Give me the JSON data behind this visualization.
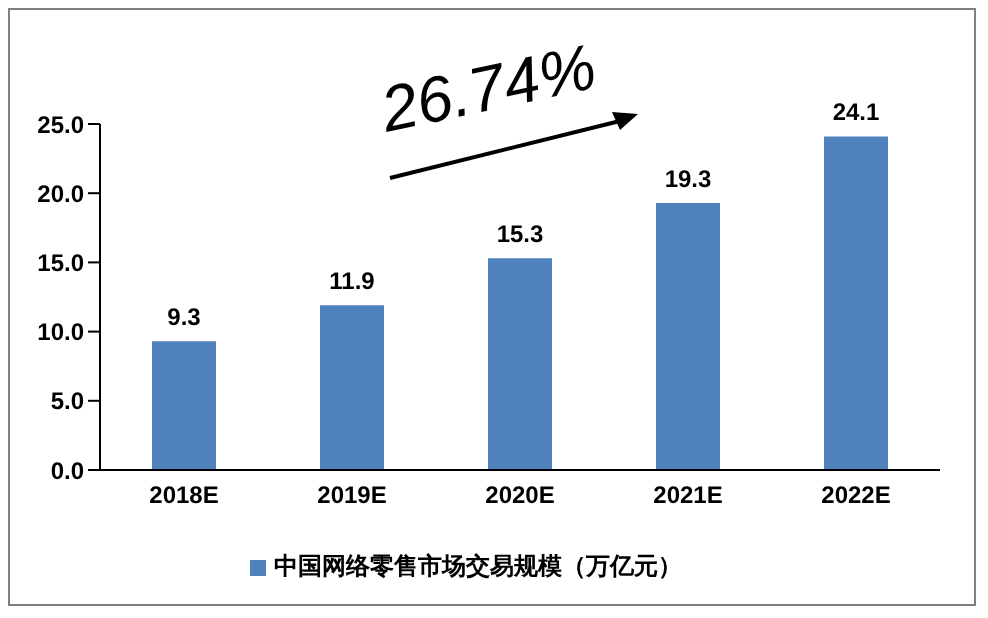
{
  "chart_data": {
    "type": "bar",
    "categories": [
      "2018E",
      "2019E",
      "2020E",
      "2021E",
      "2022E"
    ],
    "series": [
      {
        "name": "中国网络零售市场交易规模（万亿元）",
        "color": "#4f81bd",
        "values": [
          9.3,
          11.9,
          15.3,
          19.3,
          24.1
        ]
      }
    ],
    "ylim": [
      0,
      25
    ],
    "yticks": [
      {
        "value": 0,
        "label": "0.0"
      },
      {
        "value": 5,
        "label": "5.0"
      },
      {
        "value": 10,
        "label": "10.0"
      },
      {
        "value": 15,
        "label": "15.0"
      },
      {
        "value": 20,
        "label": "20.0"
      },
      {
        "value": 25,
        "label": "25.0"
      }
    ],
    "data_labels": true,
    "grid": false,
    "legend": "bottom",
    "annotations": [
      "26.74%"
    ]
  }
}
